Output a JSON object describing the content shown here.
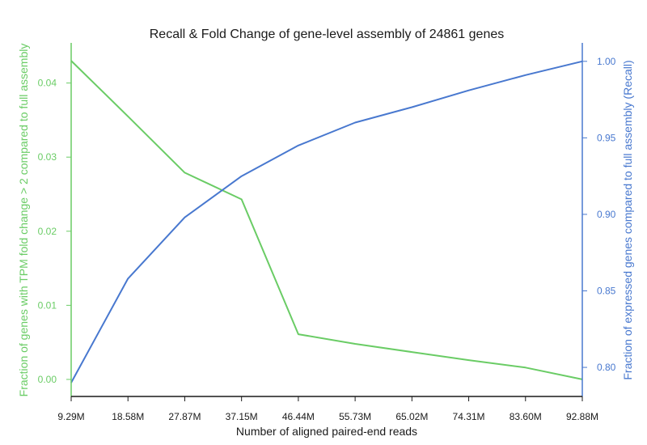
{
  "chart_data": {
    "type": "line",
    "title": "Recall & Fold Change of gene-level assembly of 24861 genes",
    "xlabel": "Number of aligned paired-end reads",
    "categories": [
      "9.29M",
      "18.58M",
      "27.87M",
      "37.15M",
      "46.44M",
      "55.73M",
      "65.02M",
      "74.31M",
      "83.60M",
      "92.88M"
    ],
    "grid": false,
    "legend": "none",
    "colors": {
      "left_axis": "#6acc65",
      "right_axis": "#4878cf",
      "frame": "#1a1a1a",
      "background": "#ffffff"
    },
    "y_left": {
      "label": "Fraction of genes with TPM fold change > 2 compared to full assembly",
      "ylim": [
        -0.0023,
        0.0452
      ],
      "ticks": [
        0.0,
        0.01,
        0.02,
        0.03,
        0.04
      ],
      "tick_labels": [
        "0.00",
        "0.01",
        "0.02",
        "0.03",
        "0.04"
      ]
    },
    "y_right": {
      "label": "Fraction of expressed genes compared to full assembly (Recall)",
      "ylim": [
        0.781,
        1.011
      ],
      "ticks": [
        0.8,
        0.85,
        0.9,
        0.95,
        1.0
      ],
      "tick_labels": [
        "0.80",
        "0.85",
        "0.90",
        "0.95",
        "1.00"
      ]
    },
    "series": [
      {
        "axis": "left",
        "color": "#6acc65",
        "values": [
          0.043,
          0.0355,
          0.0279,
          0.0243,
          0.0061,
          0.0048,
          0.0037,
          0.0026,
          0.0016,
          0.0
        ]
      },
      {
        "axis": "right",
        "color": "#4878cf",
        "values": [
          0.79,
          0.858,
          0.898,
          0.925,
          0.945,
          0.96,
          0.97,
          0.981,
          0.991,
          1.0
        ]
      }
    ]
  }
}
